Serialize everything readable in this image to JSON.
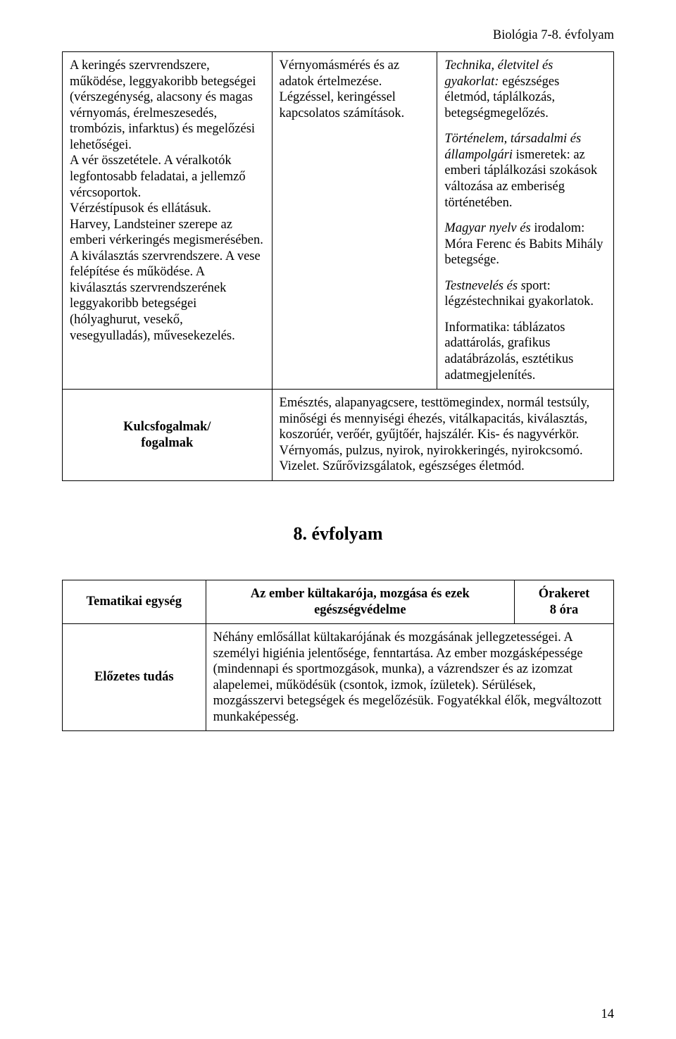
{
  "header": {
    "course": "Biológia 7-8. évfolyam"
  },
  "table1": {
    "colA": {
      "text": "A keringés szervrendszere, működése, leggyakoribb betegségei (vérszegénység, alacsony és magas vérnyomás, érelmeszesedés, trombózis, infarktus) és megelőzési lehetőségei.\nA vér összetétele. A véralkotók legfontosabb feladatai, a jellemző vércsoportok.\nVérzéstípusok és ellátásuk.\nHarvey, Landsteiner szerepe az emberi vérkeringés megismerésében.\nA kiválasztás szervrendszere. A vese felépítése és működése. A kiválasztás szervrendszerének leggyakoribb betegségei (hólyaghurut, vesekő, vesegyulladás), művesekezelés."
    },
    "colB": {
      "text": "Vérnyomásmérés és az adatok értelmezése.\nLégzéssel, keringéssel kapcsolatos számítások."
    },
    "colC": {
      "p1_italic": "Technika, életvitel és gyakorlat:",
      "p1_rest": " egészséges életmód, táplálkozás, betegségmegelőzés.",
      "p2_italic": "Történelem, társadalmi és állampolgári ",
      "p2_rest": "ismeretek: az emberi táplálkozási szokások változása az emberiség történetében.",
      "p3_italic": "Magyar nyelv és ",
      "p3_rest": "irodalom: Móra Ferenc és Babits Mihály betegsége.",
      "p4_italic": "Testnevelés és s",
      "p4_rest": "port: légzéstechnikai gyakorlatok.",
      "p5": "Informatika: táblázatos adattárolás, grafikus adatábrázolás, esztétikus adatmegjelenítés."
    }
  },
  "kulcs": {
    "label_line1": "Kulcsfogalmak/",
    "label_line2": "fogalmak",
    "text": "Emésztés, alapanyagcsere, testtömegindex, normál testsúly, minőségi és mennyiségi éhezés, vitálkapacitás, kiválasztás, koszorúér, verőér, gyűjtőér, hajszálér. Kis- és nagyvérkör. Vérnyomás, pulzus, nyirok, nyirokkeringés, nyirokcsomó. Vizelet. Szűrővizsgálatok, egészséges életmód."
  },
  "section_title": "8. évfolyam",
  "table2": {
    "row1": {
      "label": "Tematikai egység",
      "mid_line1": "Az ember kültakarója, mozgása és ezek",
      "mid_line2": "egészségvédelme",
      "right_line1": "Órakeret",
      "right_line2": "8 óra"
    },
    "row2": {
      "label": "Előzetes tudás",
      "text": "Néhány emlősállat kültakarójának és mozgásának jellegzetességei. A személyi higiénia jelentősége, fenntartása. Az ember mozgásképessége (mindennapi és sportmozgások, munka), a vázrendszer és az izomzat alapelemei, működésük (csontok, izmok, ízületek). Sérülések, mozgásszervi betegségek és megelőzésük. Fogyatékkal élők, megváltozott munkaképesség."
    }
  },
  "page_number": "14"
}
